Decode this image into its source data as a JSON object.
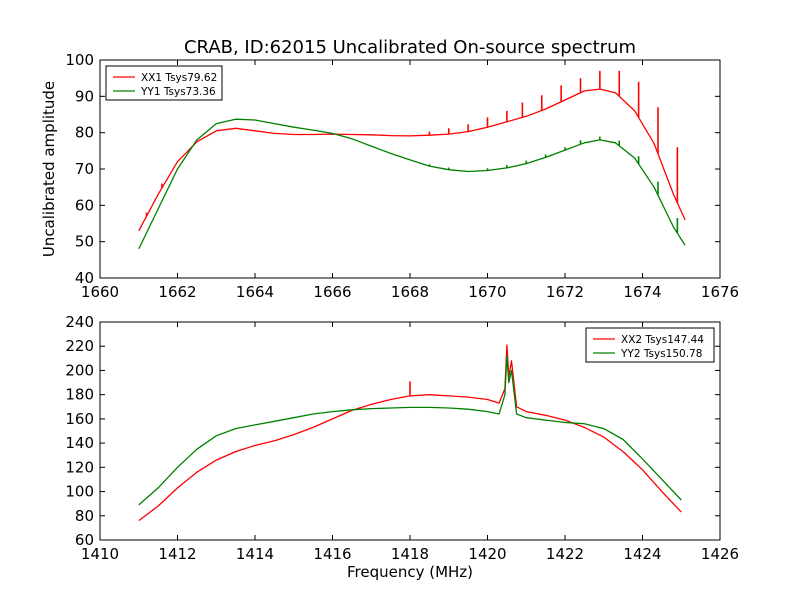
{
  "figure": {
    "title": "CRAB, ID:62015 Uncalibrated On-source spectrum",
    "ylabel": "Uncalibrated amplitude",
    "xlabel": "Frequency (MHz)"
  },
  "chart_data": [
    {
      "type": "line",
      "xlim": [
        1660,
        1676
      ],
      "ylim": [
        40,
        100
      ],
      "xticks": [
        1660,
        1662,
        1664,
        1666,
        1668,
        1670,
        1672,
        1674,
        1676
      ],
      "yticks": [
        40,
        50,
        60,
        70,
        80,
        90,
        100
      ],
      "legend_position": "top-left",
      "series": [
        {
          "name": "XX1 Tsys79.62",
          "color": "#ff0000",
          "x": [
            1661.0,
            1661.5,
            1662.0,
            1662.5,
            1663.0,
            1663.5,
            1664.0,
            1664.5,
            1665.0,
            1665.5,
            1666.0,
            1666.5,
            1667.0,
            1667.5,
            1668.0,
            1668.5,
            1669.0,
            1669.5,
            1670.0,
            1670.5,
            1671.0,
            1671.5,
            1672.0,
            1672.5,
            1672.9,
            1673.3,
            1673.8,
            1674.3,
            1674.8,
            1675.1
          ],
          "y": [
            53,
            63,
            72,
            77.5,
            80.5,
            81.2,
            80.5,
            79.8,
            79.5,
            79.5,
            79.6,
            79.5,
            79.4,
            79.2,
            79.1,
            79.3,
            79.6,
            80.3,
            81.5,
            83,
            84.5,
            86.5,
            89,
            91.5,
            92,
            91,
            86,
            77,
            63,
            56
          ],
          "spikes": [
            [
              1661.2,
              58
            ],
            [
              1661.6,
              66
            ],
            [
              1668.5,
              80.3
            ],
            [
              1669.0,
              81.2
            ],
            [
              1669.5,
              82.3
            ],
            [
              1670.0,
              84.2
            ],
            [
              1670.5,
              86
            ],
            [
              1670.9,
              88.3
            ],
            [
              1671.4,
              90.3
            ],
            [
              1671.9,
              93
            ],
            [
              1672.4,
              95
            ],
            [
              1672.9,
              97
            ],
            [
              1673.4,
              97
            ],
            [
              1673.9,
              94
            ],
            [
              1674.4,
              87
            ],
            [
              1674.9,
              76
            ]
          ]
        },
        {
          "name": "YY1 Tsys73.36",
          "color": "#008000",
          "x": [
            1661.0,
            1661.5,
            1662.0,
            1662.5,
            1663.0,
            1663.5,
            1664.0,
            1664.5,
            1665.0,
            1665.5,
            1666.0,
            1666.5,
            1667.0,
            1667.5,
            1668.0,
            1668.5,
            1669.0,
            1669.5,
            1670.0,
            1670.5,
            1671.0,
            1671.5,
            1672.0,
            1672.5,
            1672.9,
            1673.3,
            1673.8,
            1674.3,
            1674.8,
            1675.1
          ],
          "y": [
            48,
            59,
            70,
            78,
            82.5,
            83.7,
            83.5,
            82.5,
            81.5,
            80.7,
            79.8,
            78.3,
            76.3,
            74.3,
            72.5,
            70.8,
            69.8,
            69.3,
            69.6,
            70.3,
            71.5,
            73.2,
            75.2,
            77.2,
            78,
            77.2,
            73,
            65,
            54,
            49
          ],
          "spikes": [
            [
              1668.5,
              71.3
            ],
            [
              1669.0,
              70.4
            ],
            [
              1670.0,
              70.2
            ],
            [
              1670.5,
              71.1
            ],
            [
              1671.0,
              72.3
            ],
            [
              1671.5,
              74
            ],
            [
              1672.0,
              76
            ],
            [
              1672.4,
              77.9
            ],
            [
              1672.9,
              78.9
            ],
            [
              1673.4,
              77.8
            ],
            [
              1673.9,
              73.5
            ],
            [
              1674.4,
              66.5
            ],
            [
              1674.9,
              56.5
            ]
          ]
        }
      ]
    },
    {
      "type": "line",
      "xlim": [
        1410,
        1426
      ],
      "ylim": [
        60,
        240
      ],
      "xticks": [
        1410,
        1412,
        1414,
        1416,
        1418,
        1420,
        1422,
        1424,
        1426
      ],
      "yticks": [
        60,
        80,
        100,
        120,
        140,
        160,
        180,
        200,
        220,
        240
      ],
      "legend_position": "top-right",
      "series": [
        {
          "name": "XX2 Tsys147.44",
          "color": "#ff0000",
          "x": [
            1411.0,
            1411.5,
            1412.0,
            1412.5,
            1413.0,
            1413.5,
            1414.0,
            1414.5,
            1415.0,
            1415.5,
            1416.0,
            1416.5,
            1417.0,
            1417.5,
            1418.0,
            1418.5,
            1419.0,
            1419.5,
            1420.0,
            1420.3,
            1420.45,
            1420.5,
            1420.55,
            1420.62,
            1420.75,
            1421.0,
            1421.5,
            1422.0,
            1422.5,
            1423.0,
            1423.5,
            1424.0,
            1424.5,
            1425.0
          ],
          "y": [
            76,
            88,
            103,
            116,
            126,
            133,
            138,
            142,
            147,
            153,
            160,
            167,
            172,
            176,
            179,
            180,
            179,
            178,
            176,
            173,
            185,
            221,
            195,
            208,
            170,
            166,
            163,
            159,
            153,
            145,
            133,
            118,
            100,
            83
          ],
          "spikes": [
            [
              1418.0,
              191
            ]
          ]
        },
        {
          "name": "YY2 Tsys150.78",
          "color": "#008000",
          "x": [
            1411.0,
            1411.5,
            1412.0,
            1412.5,
            1413.0,
            1413.5,
            1414.0,
            1414.5,
            1415.0,
            1415.5,
            1416.0,
            1416.5,
            1417.0,
            1417.5,
            1418.0,
            1418.5,
            1419.0,
            1419.5,
            1420.0,
            1420.3,
            1420.45,
            1420.5,
            1420.55,
            1420.62,
            1420.75,
            1421.0,
            1421.5,
            1422.0,
            1422.5,
            1423.0,
            1423.5,
            1424.0,
            1424.5,
            1425.0
          ],
          "y": [
            89,
            103,
            120,
            135,
            146,
            152,
            155,
            158,
            161,
            164,
            166,
            167.5,
            168.5,
            169,
            169.5,
            169.5,
            169,
            168,
            166,
            164,
            180,
            212,
            190,
            200,
            164,
            161,
            159,
            157,
            156,
            152,
            143,
            127,
            110,
            93
          ],
          "spikes": []
        }
      ]
    }
  ]
}
